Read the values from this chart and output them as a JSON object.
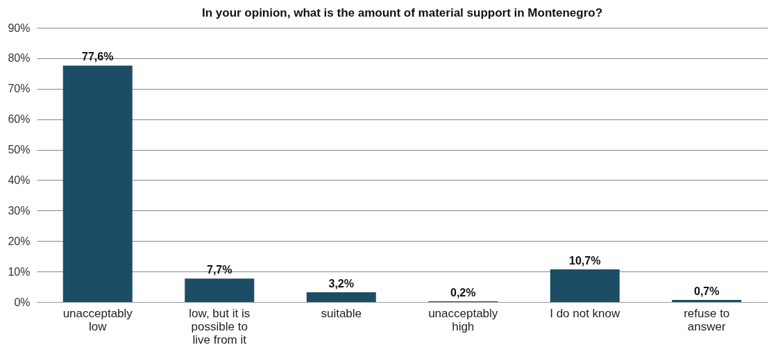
{
  "chart_data": {
    "type": "bar",
    "title": "In your opinion, what is the amount of material support in Montenegro?",
    "categories": [
      "unacceptably low",
      "low, but it is possible to live from it",
      "suitable",
      "unacceptably high",
      "I do not know",
      "refuse to answer"
    ],
    "values": [
      77.6,
      7.7,
      3.2,
      0.2,
      10.7,
      0.7
    ],
    "value_labels": [
      "77,6%",
      "7,7%",
      "3,2%",
      "0,2%",
      "10,7%",
      "0,7%"
    ],
    "color": "#1b4d65",
    "ylim": [
      0,
      90
    ],
    "yticks": [
      {
        "value": 0,
        "label": "0%"
      },
      {
        "value": 10,
        "label": "10%"
      },
      {
        "value": 20,
        "label": "20%"
      },
      {
        "value": 30,
        "label": "30%"
      },
      {
        "value": 40,
        "label": "40%"
      },
      {
        "value": 50,
        "label": "50%"
      },
      {
        "value": 60,
        "label": "60%"
      },
      {
        "value": 70,
        "label": "70%"
      },
      {
        "value": 80,
        "label": "80%"
      },
      {
        "value": 90,
        "label": "90%"
      }
    ],
    "grid": "y"
  }
}
